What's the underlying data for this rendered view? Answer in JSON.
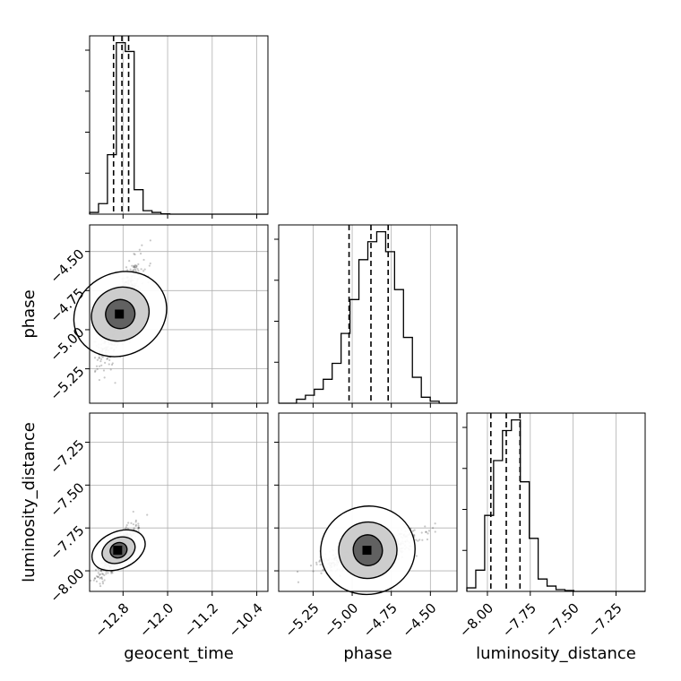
{
  "chart_data": {
    "type": "corner",
    "parameters": [
      "geocent_time",
      "phase",
      "luminosity_distance"
    ],
    "axis_labels": {
      "geocent_time": "geocent_time",
      "phase": "phase",
      "luminosity_distance": "luminosity_distance"
    },
    "ranges": {
      "geocent_time": [
        -13.4,
        -10.2
      ],
      "phase": [
        -5.47,
        -4.33
      ],
      "luminosity_distance": [
        -8.12,
        -7.08
      ]
    },
    "ticks": {
      "geocent_time": {
        "values": [
          -12.8,
          -12.0,
          -11.2,
          -10.4
        ],
        "labels": [
          "−12.8",
          "−12.0",
          "−11.2",
          "−10.4"
        ]
      },
      "phase": {
        "values": [
          -5.25,
          -5.0,
          -4.75,
          -4.5
        ],
        "labels": [
          "−5.25",
          "−5.00",
          "−4.75",
          "−4.50"
        ]
      },
      "luminosity_distance": {
        "values": [
          -8.0,
          -7.75,
          -7.5,
          -7.25
        ],
        "labels": [
          "−8.00",
          "−7.75",
          "−7.50",
          "−7.25"
        ]
      }
    },
    "quantiles": {
      "geocent_time": [
        -12.97,
        -12.82,
        -12.7
      ],
      "phase": [
        -5.02,
        -4.88,
        -4.77
      ],
      "luminosity_distance": [
        -7.98,
        -7.89,
        -7.81
      ]
    },
    "histograms": {
      "geocent_time": {
        "edges": [
          -13.4,
          -13.24,
          -13.08,
          -12.92,
          -12.76,
          -12.6,
          -12.44,
          -12.28,
          -12.12,
          -11.96,
          -11.8,
          -11.64,
          -11.48,
          -11.32,
          -11.16,
          -11.0,
          -10.84,
          -10.68,
          -10.52,
          -10.36,
          -10.2
        ],
        "counts": [
          0.01,
          0.06,
          0.34,
          0.98,
          0.93,
          0.14,
          0.02,
          0.01,
          0.002,
          0,
          0,
          0,
          0,
          0,
          0,
          0,
          0,
          0,
          0,
          0
        ]
      },
      "phase": {
        "edges": [
          -5.47,
          -5.413,
          -5.356,
          -5.299,
          -5.242,
          -5.185,
          -5.128,
          -5.071,
          -5.014,
          -4.957,
          -4.9,
          -4.843,
          -4.786,
          -4.729,
          -4.672,
          -4.615,
          -4.558,
          -4.501,
          -4.444,
          -4.387,
          -4.33
        ],
        "counts": [
          0,
          0,
          0.02,
          0.04,
          0.07,
          0.12,
          0.2,
          0.35,
          0.52,
          0.72,
          0.81,
          0.86,
          0.76,
          0.57,
          0.33,
          0.13,
          0.03,
          0.01,
          0,
          0
        ]
      },
      "luminosity_distance": {
        "edges": [
          -8.12,
          -8.068,
          -8.016,
          -7.964,
          -7.912,
          -7.86,
          -7.808,
          -7.756,
          -7.704,
          -7.652,
          -7.6,
          -7.548,
          -7.496,
          -7.444,
          -7.392,
          -7.34,
          -7.288,
          -7.236,
          -7.184,
          -7.132,
          -7.08
        ],
        "counts": [
          0.02,
          0.12,
          0.43,
          0.74,
          0.91,
          0.97,
          0.62,
          0.3,
          0.07,
          0.03,
          0.01,
          0.005,
          0,
          0,
          0,
          0,
          0,
          0,
          0,
          0
        ]
      }
    },
    "panels_2d": [
      {
        "x": "geocent_time",
        "y": "phase",
        "center": [
          -12.85,
          -4.9
        ],
        "spread": [
          0.18,
          0.15
        ],
        "correlation": 0.75
      },
      {
        "x": "geocent_time",
        "y": "luminosity_distance",
        "center": [
          -12.88,
          -7.88
        ],
        "spread": [
          0.16,
          0.07
        ],
        "correlation": 0.85
      },
      {
        "x": "phase",
        "y": "luminosity_distance",
        "center": [
          -4.9,
          -7.88
        ],
        "spread": [
          0.15,
          0.055
        ],
        "correlation": 0.7
      }
    ],
    "grid": true,
    "legend": "none"
  }
}
